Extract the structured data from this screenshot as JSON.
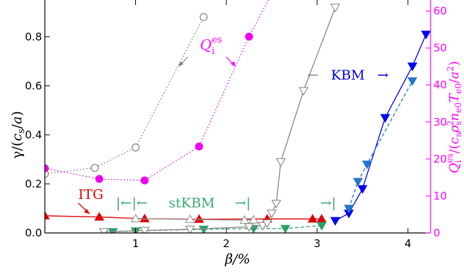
{
  "chart_data": {
    "type": "line",
    "xlabel": "β/%",
    "ylabel_left": "γ/(cs/a)",
    "ylabel_right": "Qi^es/(cs ρs² ne0 Te0/a²)",
    "xlim": [
      0.0,
      4.25
    ],
    "ylim_left": [
      0.0,
      0.95
    ],
    "ylim_right": [
      0,
      63
    ],
    "x_ticks": [
      "1",
      "2",
      "3",
      "4"
    ],
    "y_ticks_left": [
      "0.0",
      "0.2",
      "0.4",
      "0.6",
      "0.8"
    ],
    "y_ticks_right": [
      "0",
      "10",
      "20",
      "30",
      "40",
      "50",
      "60"
    ],
    "grid": false,
    "series": [
      {
        "axis": "left",
        "color": "#dd0000",
        "marker": "triangle-up",
        "filled": true,
        "line": "solid",
        "x": [
          0.0,
          0.6,
          1.1,
          1.7,
          2.45,
          2.95,
          3.05
        ],
        "y": [
          0.07,
          0.065,
          0.058,
          0.056,
          0.057,
          0.057,
          0.057
        ]
      },
      {
        "axis": "left",
        "color": "#999999",
        "marker": "triangle-up",
        "filled": false,
        "line": "solid",
        "x": [
          1.0,
          1.6,
          2.2,
          2.3
        ],
        "y": [
          0.058,
          0.055,
          0.052,
          0.053
        ]
      },
      {
        "axis": "left",
        "color": "#2e9e6b",
        "marker": "triangle-down",
        "filled": true,
        "line": "dashed",
        "x": [
          0.75,
          1.0,
          1.75,
          2.3,
          2.65,
          3.05
        ],
        "y": [
          0.005,
          0.008,
          0.015,
          0.018,
          0.018,
          0.03
        ]
      },
      {
        "axis": "left",
        "color": "#888888",
        "marker": "triangle-down",
        "filled": false,
        "line": "solid",
        "x": [
          0.65,
          1.1,
          1.6,
          2.25,
          2.4,
          2.45,
          2.5,
          2.55,
          2.6,
          2.85,
          3.2
        ],
        "y": [
          0.005,
          0.01,
          0.015,
          0.025,
          0.03,
          0.04,
          0.08,
          0.12,
          0.29,
          0.58,
          0.92
        ]
      },
      {
        "axis": "left",
        "color": "#0000ee",
        "marker": "triangle-down",
        "filled": true,
        "line": "solid",
        "x": [
          3.2,
          3.35,
          3.5,
          3.75,
          4.05,
          4.2
        ],
        "y": [
          0.05,
          0.08,
          0.18,
          0.47,
          0.68,
          0.81
        ]
      },
      {
        "axis": "left",
        "color": "#2277cc",
        "marker": "triangle-down",
        "filled": true,
        "line": "dashed",
        "x": [
          3.35,
          3.45,
          3.55,
          4.05
        ],
        "y": [
          0.1,
          0.21,
          0.28,
          0.62
        ]
      },
      {
        "axis": "right",
        "color": "#777777",
        "marker": "circle",
        "filled": false,
        "line": "dotted",
        "x": [
          0.0,
          0.55,
          1.0,
          1.75
        ],
        "y": [
          16.0,
          17.6,
          23.1,
          58.4
        ]
      },
      {
        "axis": "right",
        "color": "#ee00ee",
        "marker": "circle",
        "filled": true,
        "line": "dotted",
        "x": [
          0.0,
          0.6,
          1.1,
          1.7,
          2.25,
          2.55
        ],
        "y": [
          17.5,
          14.6,
          14.2,
          23.4,
          53.1,
          67.0
        ]
      }
    ],
    "annotations": {
      "itg": "ITG",
      "stkbm": "stKBM",
      "kbm": "KBM",
      "qi": "Qi^es",
      "arrow_left": "←",
      "arrow_right": "→",
      "bar_left": "|←|←",
      "bar_mid_right": "→|",
      "bar_right": "→|"
    }
  }
}
